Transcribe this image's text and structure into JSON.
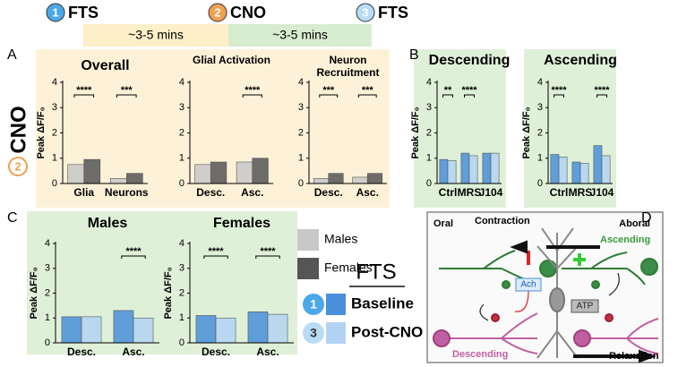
{
  "timeline": {
    "steps": [
      {
        "number": "1",
        "label": "FTS",
        "color": "#4aa8e8"
      },
      {
        "number": "2",
        "label": "CNO",
        "color": "#f0a050"
      },
      {
        "number": "3",
        "label": "FTS",
        "color": "#b8dcf5"
      }
    ],
    "intervals": [
      {
        "label": "~3-5 mins",
        "color": "#fdefc8"
      },
      {
        "label": "~3-5 mins",
        "color": "#d8ecd0"
      }
    ]
  },
  "side_label": {
    "number": "2",
    "label": "CNO"
  },
  "panel_labels": [
    "A",
    "B",
    "C",
    "D"
  ],
  "legend_sex": [
    {
      "name": "Males",
      "color": "#c8c8c8"
    },
    {
      "name": "Females",
      "color": "#555555"
    }
  ],
  "legend_fts": {
    "title": "FTS",
    "items": [
      {
        "number": "1",
        "name": "Baseline",
        "color": "#4a8fdb"
      },
      {
        "number": "3",
        "name": "Post-CNO",
        "color": "#b3d3f5"
      }
    ]
  },
  "chart_data": [
    {
      "type": "bar",
      "title": "Overall",
      "ylabel": "Peak ΔF/F₀",
      "categories": [
        "Glia",
        "Neurons"
      ],
      "series": [
        {
          "color": "#c8c8c8",
          "values": [
            0.75,
            0.2
          ]
        },
        {
          "color": "#555555",
          "values": [
            0.95,
            0.4
          ]
        }
      ],
      "ylim": [
        0,
        4
      ],
      "yticks": [
        0,
        1,
        2,
        3,
        4
      ],
      "annotations": [
        {
          "category": "Glia",
          "text": "****"
        },
        {
          "category": "Neurons",
          "text": "***"
        }
      ]
    },
    {
      "type": "bar",
      "title": "Glial Activation",
      "categories": [
        "Desc.",
        "Asc."
      ],
      "series": [
        {
          "color": "#c8c8c8",
          "values": [
            0.75,
            0.85
          ]
        },
        {
          "color": "#555555",
          "values": [
            0.85,
            1.0
          ]
        }
      ],
      "ylim": [
        0,
        4
      ],
      "yticks": [
        0,
        1,
        2,
        3,
        4
      ],
      "annotations": [
        {
          "category": "Asc.",
          "text": "****"
        }
      ]
    },
    {
      "type": "bar",
      "title": "Neuron Recruitment",
      "categories": [
        "Desc.",
        "Asc."
      ],
      "series": [
        {
          "color": "#c8c8c8",
          "values": [
            0.2,
            0.25
          ]
        },
        {
          "color": "#555555",
          "values": [
            0.4,
            0.4
          ]
        }
      ],
      "ylim": [
        0,
        4
      ],
      "yticks": [
        0,
        1,
        2,
        3,
        4
      ],
      "annotations": [
        {
          "category": "Desc.",
          "text": "***"
        },
        {
          "category": "Asc.",
          "text": "***"
        }
      ]
    },
    {
      "type": "bar",
      "title": "Descending",
      "ylabel": "Peak ΔF/F₀",
      "categories": [
        "Ctrl",
        "MRS",
        "J104"
      ],
      "series": [
        {
          "color": "#4a8fdb",
          "values": [
            0.95,
            1.2,
            1.2
          ]
        },
        {
          "color": "#b3d3f5",
          "values": [
            0.9,
            1.1,
            1.2
          ]
        }
      ],
      "ylim": [
        0,
        4
      ],
      "yticks": [
        0,
        1,
        2,
        3,
        4
      ],
      "annotations": [
        {
          "category": "Ctrl",
          "text": "**"
        },
        {
          "category": "MRS",
          "text": "****"
        }
      ]
    },
    {
      "type": "bar",
      "title": "Ascending",
      "ylabel": "Peak ΔF/F₀",
      "categories": [
        "Ctrl",
        "MRS",
        "J104"
      ],
      "series": [
        {
          "color": "#4a8fdb",
          "values": [
            1.15,
            0.85,
            1.5
          ]
        },
        {
          "color": "#b3d3f5",
          "values": [
            1.05,
            0.8,
            1.1
          ]
        }
      ],
      "ylim": [
        0,
        4
      ],
      "yticks": [
        0,
        1,
        2,
        3,
        4
      ],
      "annotations": [
        {
          "category": "Ctrl",
          "text": "****"
        },
        {
          "category": "J104",
          "text": "****"
        }
      ]
    },
    {
      "type": "bar",
      "title": "Males",
      "ylabel": "Peak ΔF/F₀",
      "categories": [
        "Desc.",
        "Asc."
      ],
      "series": [
        {
          "color": "#4a8fdb",
          "values": [
            1.05,
            1.3
          ]
        },
        {
          "color": "#b3d3f5",
          "values": [
            1.05,
            1.0
          ]
        }
      ],
      "ylim": [
        0,
        4
      ],
      "yticks": [
        0,
        1,
        2,
        3,
        4
      ],
      "annotations": [
        {
          "category": "Asc.",
          "text": "****"
        }
      ]
    },
    {
      "type": "bar",
      "title": "Females",
      "ylabel": "Peak ΔF/F₀",
      "categories": [
        "Desc.",
        "Asc."
      ],
      "series": [
        {
          "color": "#4a8fdb",
          "values": [
            1.1,
            1.25
          ]
        },
        {
          "color": "#b3d3f5",
          "values": [
            1.0,
            1.15
          ]
        }
      ],
      "ylim": [
        0,
        4
      ],
      "yticks": [
        0,
        1,
        2,
        3,
        4
      ],
      "annotations": [
        {
          "category": "Desc.",
          "text": "****"
        },
        {
          "category": "Asc.",
          "text": "****"
        }
      ]
    }
  ],
  "diagram": {
    "oral": "Oral",
    "aboral": "Aboral",
    "contraction": "Contraction",
    "relaxation": "Relaxation",
    "ascending": "Ascending",
    "descending": "Descending",
    "ach": "Ach",
    "atp": "ATP"
  }
}
